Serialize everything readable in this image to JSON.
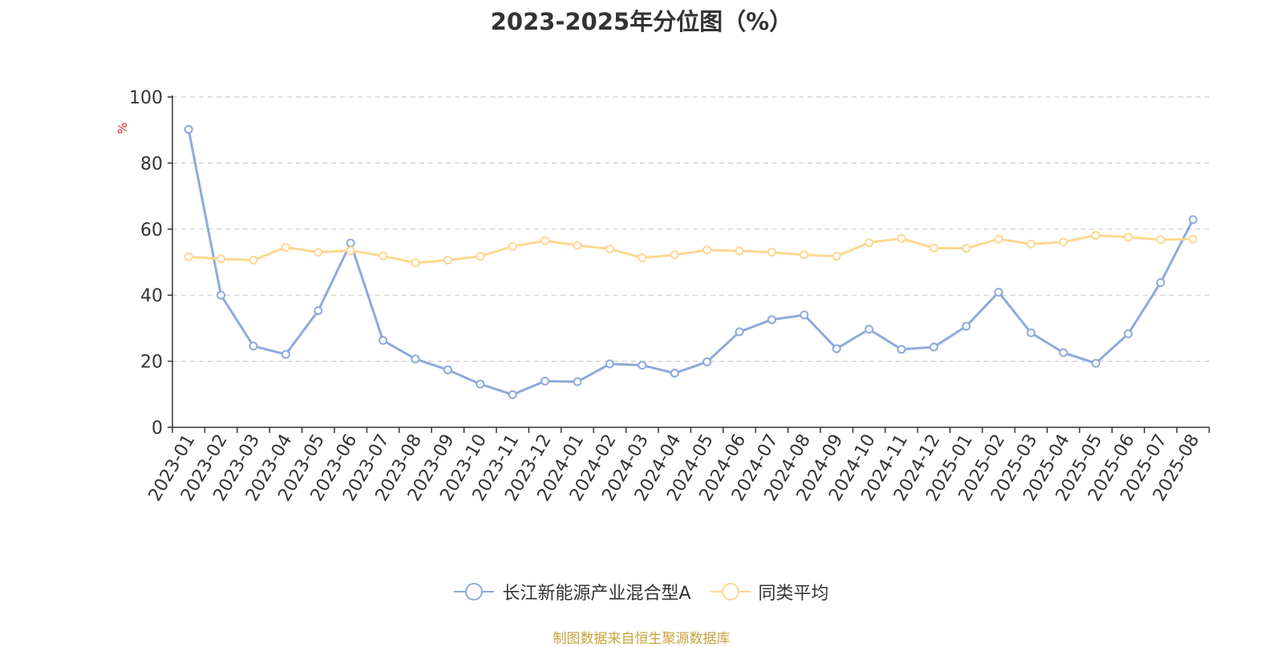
{
  "source": "制图数据来自恒生聚源数据库",
  "chart_data": {
    "type": "line",
    "title": "2023-2025年分位图（%）",
    "ylabel": "%",
    "xlabel": "",
    "ylim": [
      0,
      100
    ],
    "yticks": [
      0,
      20,
      40,
      60,
      80,
      100
    ],
    "grid": true,
    "legend_position": "bottom",
    "categories": [
      "2023-01",
      "2023-02",
      "2023-03",
      "2023-04",
      "2023-05",
      "2023-06",
      "2023-07",
      "2023-08",
      "2023-09",
      "2023-10",
      "2023-11",
      "2023-12",
      "2024-01",
      "2024-02",
      "2024-03",
      "2024-04",
      "2024-05",
      "2024-06",
      "2024-07",
      "2024-08",
      "2024-09",
      "2024-10",
      "2024-11",
      "2024-12",
      "2025-01",
      "2025-02",
      "2025-03",
      "2025-04",
      "2025-05",
      "2025-06",
      "2025-07",
      "2025-08"
    ],
    "series": [
      {
        "name": "长江新能源产业混合型A",
        "color": "#8eaadb",
        "values": [
          90.2,
          40.0,
          24.6,
          22.1,
          35.3,
          55.8,
          26.3,
          20.7,
          17.4,
          13.1,
          9.9,
          14.0,
          13.8,
          19.2,
          18.8,
          16.4,
          19.8,
          28.9,
          32.6,
          34.0,
          23.8,
          29.7,
          23.6,
          24.3,
          30.6,
          40.9,
          28.6,
          22.6,
          19.4,
          28.3,
          43.8,
          62.9
        ]
      },
      {
        "name": "同类平均",
        "color": "#fdd891",
        "values": [
          51.6,
          51.0,
          50.6,
          54.5,
          53.0,
          53.5,
          51.9,
          49.8,
          50.6,
          51.8,
          54.8,
          56.5,
          55.1,
          54.0,
          51.3,
          52.2,
          53.7,
          53.4,
          53.0,
          52.2,
          51.8,
          55.9,
          57.2,
          54.3,
          54.2,
          57.0,
          55.5,
          56.1,
          58.1,
          57.6,
          56.8,
          57.0
        ]
      }
    ]
  }
}
